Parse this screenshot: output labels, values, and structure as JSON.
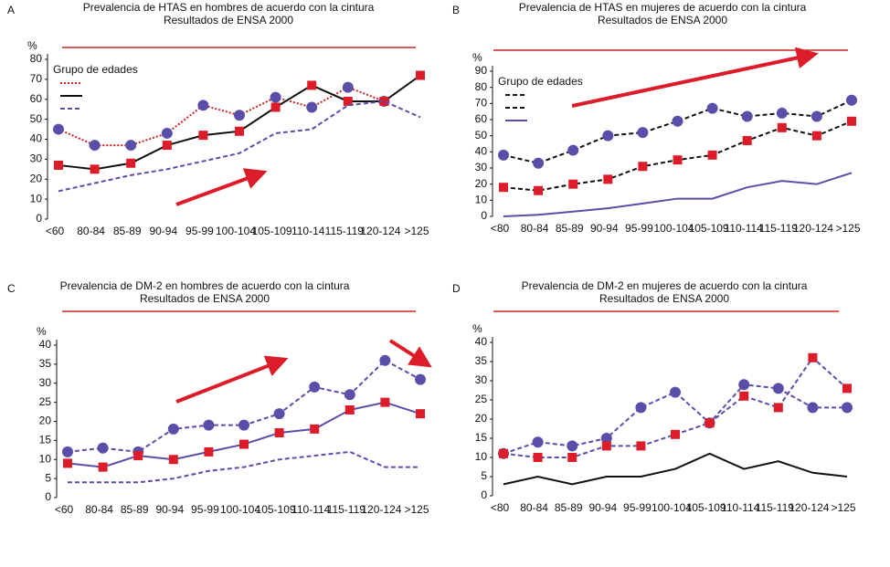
{
  "chart_data": [
    {
      "type": "line",
      "label": "A",
      "title": "Prevalencia de HTAS en hombres de acuerdo con la cintura",
      "subtitle": "Resultados de ENSA 2000",
      "y_label": "%",
      "legend_title": "Grupo de edades",
      "categories": [
        "<60",
        "80-84",
        "85-89",
        "90-94",
        "95-99",
        "100-104",
        "105-109",
        "110-14",
        "115-119",
        "120-124",
        ">125"
      ],
      "ylim": [
        0,
        80
      ],
      "yticks": [
        0,
        10,
        20,
        30,
        40,
        50,
        60,
        70,
        80
      ],
      "series": [
        {
          "color": "#cc2222",
          "dash": "dotted",
          "marker": "circle",
          "marker_color": "#5a4fa8",
          "values": [
            45,
            37,
            37,
            43,
            57,
            52,
            61,
            56,
            66,
            59,
            null
          ]
        },
        {
          "color": "#111111",
          "dash": "solid",
          "marker": "square",
          "marker_color": "#dd1c2a",
          "values": [
            27,
            25,
            28,
            37,
            42,
            44,
            56,
            67,
            59,
            59,
            72
          ]
        },
        {
          "color": "#5a4fa8",
          "dash": "dashed",
          "marker": null,
          "marker_color": null,
          "values": [
            14,
            18,
            22,
            25,
            29,
            33,
            43,
            45,
            57,
            59,
            51
          ]
        }
      ]
    },
    {
      "type": "line",
      "label": "B",
      "title": "Prevalencia de HTAS en mujeres de acuerdo con la cintura",
      "subtitle": "Resultados de ENSA 2000",
      "y_label": "%",
      "legend_title": "Grupo de edades",
      "categories": [
        "<80",
        "80-84",
        "85-89",
        "90-94",
        "95-99",
        "100-104",
        "105-109",
        "110-114",
        "115-119",
        "120-124",
        ">125"
      ],
      "ylim": [
        0,
        90
      ],
      "yticks": [
        0,
        10,
        20,
        30,
        40,
        50,
        60,
        70,
        80,
        90
      ],
      "series": [
        {
          "color": "#111111",
          "dash": "dashed",
          "marker": "circle",
          "marker_color": "#5a4fa8",
          "values": [
            38,
            33,
            41,
            50,
            52,
            59,
            67,
            62,
            64,
            62,
            72
          ]
        },
        {
          "color": "#111111",
          "dash": "dashed",
          "marker": "square",
          "marker_color": "#dd1c2a",
          "values": [
            18,
            16,
            20,
            23,
            31,
            35,
            38,
            47,
            55,
            50,
            59
          ]
        },
        {
          "color": "#5a4fa8",
          "dash": "solid",
          "marker": null,
          "marker_color": null,
          "values": [
            0,
            1,
            3,
            5,
            8,
            11,
            11,
            18,
            22,
            20,
            27
          ]
        }
      ]
    },
    {
      "type": "line",
      "label": "C",
      "title": "Prevalencia de DM-2 en hombres de acuerdo con la cintura",
      "subtitle": "Resultados de ENSA 2000",
      "y_label": "%",
      "categories": [
        "<60",
        "80-84",
        "85-89",
        "90-94",
        "95-99",
        "100-104",
        "105-109",
        "110-114",
        "115-119",
        "120-124",
        ">125"
      ],
      "ylim": [
        0,
        40
      ],
      "yticks": [
        0,
        5,
        10,
        15,
        20,
        25,
        30,
        35,
        40
      ],
      "series": [
        {
          "color": "#5a4fa8",
          "dash": "dashed",
          "marker": "circle",
          "marker_color": "#5a4fa8",
          "values": [
            12,
            13,
            12,
            18,
            19,
            19,
            22,
            29,
            27,
            36,
            31
          ]
        },
        {
          "color": "#5a4fa8",
          "dash": "solid",
          "marker": "square",
          "marker_color": "#dd1c2a",
          "values": [
            9,
            8,
            11,
            10,
            12,
            14,
            17,
            18,
            23,
            25,
            22
          ]
        },
        {
          "color": "#5a4fa8",
          "dash": "dashed",
          "marker": null,
          "marker_color": null,
          "values": [
            4,
            4,
            4,
            5,
            7,
            8,
            10,
            11,
            12,
            8,
            8
          ]
        }
      ]
    },
    {
      "type": "line",
      "label": "D",
      "title": "Prevalencia de DM-2 en mujeres de acuerdo con la cintura",
      "subtitle": "Resultados de ENSA 2000",
      "y_label": "%",
      "categories": [
        "<80",
        "80-84",
        "85-89",
        "90-94",
        "95-99",
        "100-104",
        "105-109",
        "110-114",
        "115-119",
        "120-124",
        ">125"
      ],
      "ylim": [
        0,
        40
      ],
      "yticks": [
        0,
        5,
        10,
        15,
        20,
        25,
        30,
        35,
        40
      ],
      "series": [
        {
          "color": "#5a4fa8",
          "dash": "dashed",
          "marker": "circle",
          "marker_color": "#5a4fa8",
          "values": [
            11,
            14,
            13,
            15,
            23,
            27,
            19,
            29,
            28,
            23,
            23
          ]
        },
        {
          "color": "#5a4fa8",
          "dash": "dashed",
          "marker": "square",
          "marker_color": "#dd1c2a",
          "values": [
            11,
            10,
            10,
            13,
            13,
            16,
            19,
            26,
            23,
            36,
            28
          ]
        },
        {
          "color": "#111111",
          "dash": "solid",
          "marker": null,
          "marker_color": null,
          "values": [
            3,
            5,
            3,
            5,
            5,
            7,
            11,
            7,
            9,
            6,
            5
          ]
        }
      ]
    }
  ]
}
